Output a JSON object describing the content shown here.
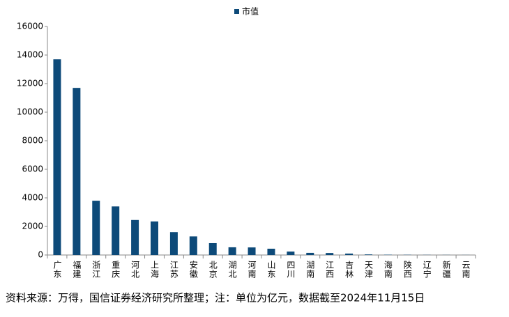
{
  "chart_data": {
    "type": "bar",
    "legend": "市值",
    "color": "#0d4a79",
    "categories": [
      "广东",
      "福建",
      "浙江",
      "重庆",
      "河北",
      "上海",
      "江苏",
      "安徽",
      "北京",
      "湖北",
      "河南",
      "山东",
      "四川",
      "湖南",
      "江西",
      "吉林",
      "天津",
      "海南",
      "陕西",
      "辽宁",
      "新疆",
      "云南"
    ],
    "values": [
      13700,
      11700,
      3800,
      3400,
      2450,
      2350,
      1600,
      1300,
      830,
      540,
      530,
      440,
      240,
      150,
      140,
      100,
      40,
      20,
      15,
      10,
      8,
      5
    ],
    "ylim": [
      0,
      16000
    ],
    "yticks": [
      0,
      2000,
      4000,
      6000,
      8000,
      10000,
      12000,
      14000,
      16000
    ],
    "note": "资料来源：万得，国信证券经济研究所整理；注：单位为亿元，数据截至2024年11月15日"
  }
}
